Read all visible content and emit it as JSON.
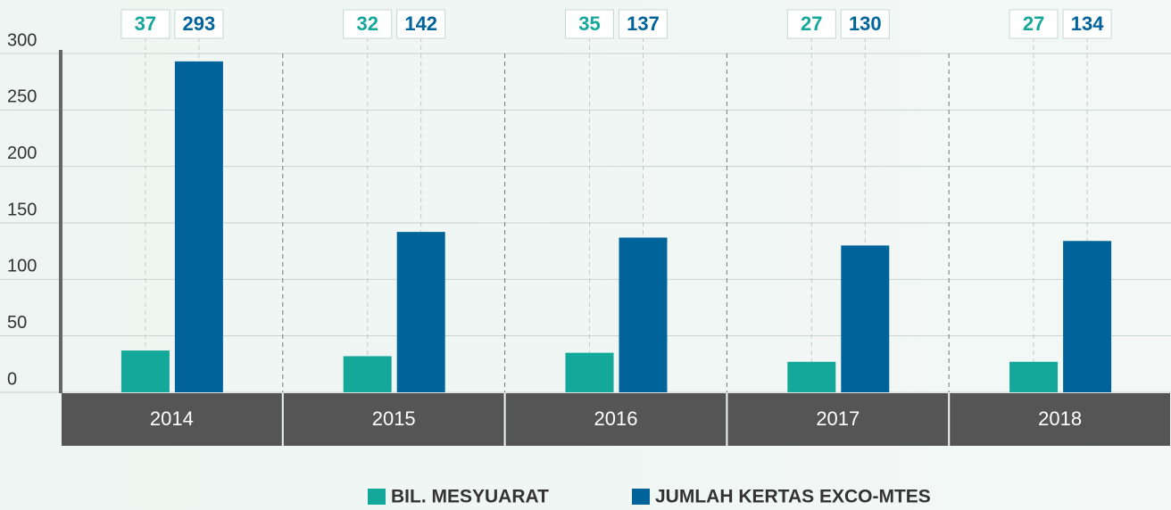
{
  "chart_data": {
    "type": "bar",
    "categories": [
      "2014",
      "2015",
      "2016",
      "2017",
      "2018"
    ],
    "series": [
      {
        "name": "BIL. MESYUARAT",
        "color": "#14a89b",
        "values": [
          37,
          32,
          35,
          27,
          27
        ]
      },
      {
        "name": "JUMLAH KERTAS EXCO-MTES",
        "color": "#00649b",
        "values": [
          293,
          142,
          137,
          130,
          134
        ]
      }
    ],
    "ylim": [
      0,
      300
    ],
    "yticks": [
      0,
      50,
      100,
      150,
      200,
      250,
      300
    ],
    "grid": true,
    "legend": "bottom"
  }
}
